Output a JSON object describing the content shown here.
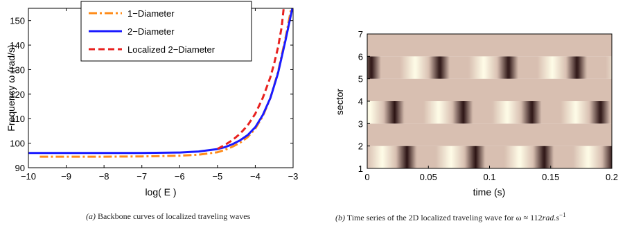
{
  "chart_data": [
    {
      "type": "line",
      "xlabel": "log( E )",
      "ylabel": "Frequency ω (rad/s)",
      "xlim": [
        -10,
        -3
      ],
      "ylim": [
        90,
        155
      ],
      "xticks": [
        "−10",
        "−9",
        "−8",
        "−7",
        "−6",
        "−5",
        "−4",
        "−3"
      ],
      "yticks": [
        "90",
        "100",
        "110",
        "120",
        "130",
        "140",
        "150"
      ],
      "legend_position": "top",
      "series": [
        {
          "name": "1−Diameter",
          "color": "#ff8c1a",
          "style": "dash-dot",
          "x": [
            -9.7,
            -9,
            -8,
            -7,
            -6,
            -5.5,
            -5,
            -4.8,
            -4.6,
            -4.4,
            -4.2,
            -4.0,
            -3.8,
            -3.6,
            -3.4,
            -3.2,
            -3.05
          ],
          "y": [
            94.5,
            94.5,
            94.5,
            94.6,
            94.9,
            95.3,
            96.3,
            97.3,
            98.6,
            100.2,
            102.5,
            105.9,
            111.0,
            118.5,
            129.0,
            143.0,
            155.0
          ]
        },
        {
          "name": "2−Diameter",
          "color": "#1a1aff",
          "style": "solid",
          "x": [
            -10,
            -9,
            -8,
            -7,
            -6,
            -5.5,
            -5,
            -4.8,
            -4.6,
            -4.4,
            -4.2,
            -4.0,
            -3.8,
            -3.6,
            -3.4,
            -3.2,
            -3.02
          ],
          "y": [
            96,
            96,
            96,
            96,
            96.2,
            96.6,
            97.6,
            98.4,
            99.6,
            101.2,
            103.3,
            106.5,
            111.5,
            118.5,
            128.5,
            142.0,
            155.0
          ]
        },
        {
          "name": "Localized 2−Diameter",
          "color": "#e8211f",
          "style": "dashed",
          "x": [
            -5,
            -4.8,
            -4.6,
            -4.4,
            -4.2,
            -4.0,
            -3.8,
            -3.6,
            -3.5,
            -3.4,
            -3.3,
            -3.25
          ],
          "y": [
            97.7,
            99.3,
            101.3,
            103.9,
            107.3,
            112.0,
            118.5,
            127.0,
            132.5,
            139.0,
            147.5,
            155.0
          ]
        }
      ]
    },
    {
      "type": "heatmap",
      "xlabel": "time (s)",
      "ylabel": "sector",
      "xlim": [
        0,
        0.2
      ],
      "ylim": [
        1,
        7
      ],
      "xticks": [
        "0",
        "0.05",
        "0.1",
        "0.15",
        "0.2"
      ],
      "yticks": [
        "1",
        "2",
        "3",
        "4",
        "5",
        "6",
        "7"
      ],
      "period": 0.0561,
      "bands": [
        {
          "y0": 1,
          "y1": 2,
          "kind": "wave",
          "phase": 0.0
        },
        {
          "y0": 2,
          "y1": 3,
          "kind": "flat"
        },
        {
          "y0": 3,
          "y1": 4,
          "kind": "wave",
          "phase": 0.18
        },
        {
          "y0": 4,
          "y1": 5,
          "kind": "flat"
        },
        {
          "y0": 5,
          "y1": 6,
          "kind": "wave",
          "phase": 0.52
        },
        {
          "y0": 6,
          "y1": 7,
          "kind": "flat"
        }
      ],
      "colors": {
        "flat": "#d8bfb1",
        "light": "#fffde8",
        "dark": "#2a1212"
      }
    }
  ],
  "captions": {
    "a_label": "(a)",
    "a_text": "Backbone curves of localized traveling waves",
    "b_label": "(b)",
    "b_text": "Time series of the 2D localized traveling wave for ω ≈ 112",
    "b_units": "rad.s",
    "b_exp": "−1"
  }
}
